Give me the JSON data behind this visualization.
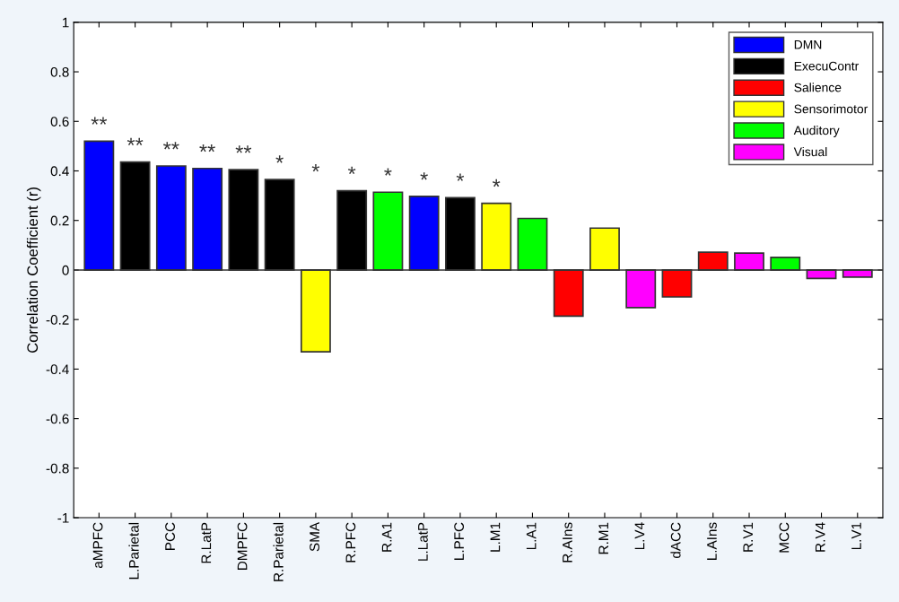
{
  "chart_data": {
    "type": "bar",
    "ylabel": "Correlation Coefficient (r)",
    "categories": [
      "aMPFC",
      "L.Parietal",
      "PCC",
      "R.LatP",
      "DMPFC",
      "R.Parietal",
      "SMA",
      "R.PFC",
      "R.A1",
      "L.LatP",
      "L.PFC",
      "L.M1",
      "L.A1",
      "R.AIns",
      "R.M1",
      "L.V4",
      "dACC",
      "L.AIns",
      "R.V1",
      "MCC",
      "R.V4",
      "L.V1"
    ],
    "series": [
      {
        "name": "DMN",
        "color": "#0000ff",
        "values": [
          0.52,
          null,
          0.42,
          0.41,
          null,
          null,
          null,
          null,
          null,
          0.297,
          null,
          null,
          null,
          null,
          null,
          null,
          null,
          null,
          null,
          null,
          null,
          null
        ]
      },
      {
        "name": "ExecuContr",
        "color": "#000000",
        "values": [
          null,
          0.436,
          null,
          null,
          0.405,
          0.365,
          null,
          0.32,
          null,
          null,
          0.292,
          null,
          null,
          null,
          null,
          null,
          null,
          null,
          null,
          null,
          null,
          null
        ]
      },
      {
        "name": "Salience",
        "color": "#ff0000",
        "values": [
          null,
          null,
          null,
          null,
          null,
          null,
          null,
          null,
          null,
          null,
          null,
          null,
          null,
          -0.186,
          null,
          null,
          -0.109,
          0.072,
          null,
          null,
          null,
          null
        ]
      },
      {
        "name": "Sensorimotor",
        "color": "#ffff00",
        "values": [
          null,
          null,
          null,
          null,
          null,
          null,
          -0.33,
          null,
          null,
          null,
          null,
          0.269,
          null,
          null,
          0.169,
          null,
          null,
          null,
          null,
          null,
          null,
          null
        ]
      },
      {
        "name": "Auditory",
        "color": "#00ff00",
        "values": [
          null,
          null,
          null,
          null,
          null,
          null,
          null,
          null,
          0.314,
          null,
          null,
          null,
          0.208,
          null,
          null,
          null,
          null,
          null,
          null,
          0.051,
          null,
          null
        ]
      },
      {
        "name": "Visual",
        "color": "#ff00ff",
        "values": [
          null,
          null,
          null,
          null,
          null,
          null,
          null,
          null,
          null,
          null,
          null,
          null,
          null,
          null,
          null,
          -0.152,
          null,
          null,
          0.068,
          null,
          -0.034,
          -0.029
        ]
      }
    ],
    "ylim": [
      -1,
      1
    ],
    "yticks": [
      -1,
      -0.8,
      -0.6,
      -0.4,
      -0.2,
      0,
      0.2,
      0.4,
      0.6,
      0.8,
      1
    ],
    "annotations": [
      "**",
      "**",
      "**",
      "**",
      "**",
      "*",
      "*",
      "*",
      "*",
      "*",
      "*",
      "*"
    ],
    "ref_lines": [
      {
        "axis": "y",
        "value": 0,
        "color": "#333333"
      }
    ],
    "grid": false,
    "legend": "top right"
  }
}
